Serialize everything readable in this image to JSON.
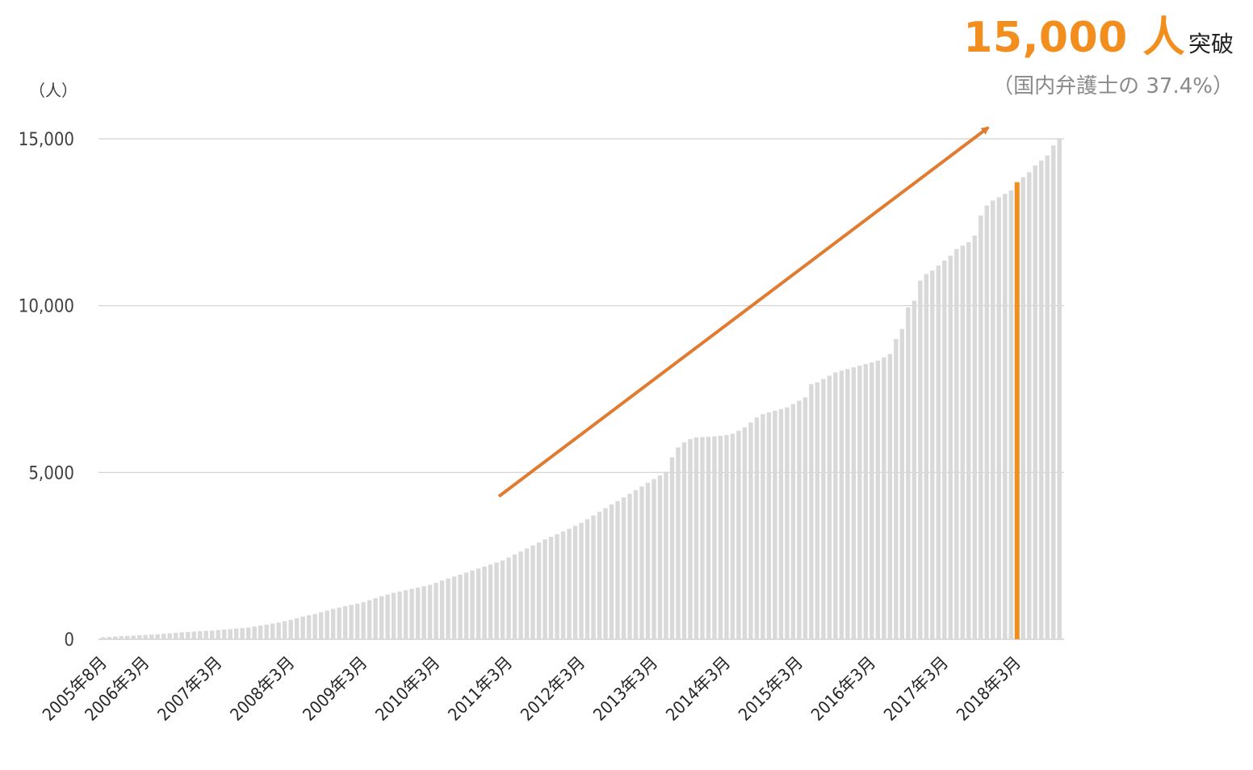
{
  "headline": {
    "count": "15,000 人",
    "suffix": "突破"
  },
  "subtext": "（国内弁護士の 37.4%）",
  "unit_label": "（人）",
  "colors": {
    "bar": "#d9d9d9",
    "highlight": "#f28e1e",
    "arrow": "#e07b30",
    "grid": "#d0d0d0",
    "headline": "#f28e1e"
  },
  "chart_data": {
    "type": "bar",
    "title": "",
    "xlabel": "",
    "ylabel": "（人）",
    "ylim": [
      0,
      15000
    ],
    "yticks": [
      "0",
      "5,000",
      "10,000",
      "15,000"
    ],
    "xtick_labels": [
      "2005年8月",
      "2006年3月",
      "2007年3月",
      "2008年3月",
      "2009年3月",
      "2010年3月",
      "2011年3月",
      "2012年3月",
      "2013年3月",
      "2014年3月",
      "2015年3月",
      "2016年3月",
      "2017年3月",
      "2018年3月"
    ],
    "xtick_index": [
      0,
      7,
      19,
      31,
      43,
      55,
      67,
      79,
      91,
      103,
      115,
      127,
      139,
      151
    ],
    "highlight_index": 151,
    "annotation": "upward trend arrow",
    "values": [
      60,
      70,
      80,
      90,
      100,
      110,
      120,
      130,
      140,
      150,
      165,
      180,
      195,
      210,
      220,
      230,
      240,
      250,
      260,
      275,
      290,
      305,
      320,
      335,
      350,
      380,
      410,
      440,
      470,
      500,
      540,
      580,
      630,
      680,
      720,
      760,
      810,
      860,
      910,
      950,
      990,
      1030,
      1070,
      1110,
      1170,
      1230,
      1290,
      1340,
      1390,
      1430,
      1470,
      1510,
      1550,
      1590,
      1630,
      1690,
      1760,
      1820,
      1880,
      1940,
      2000,
      2060,
      2120,
      2180,
      2240,
      2300,
      2360,
      2450,
      2540,
      2630,
      2720,
      2810,
      2900,
      2990,
      3070,
      3150,
      3230,
      3310,
      3400,
      3490,
      3600,
      3710,
      3820,
      3930,
      4040,
      4140,
      4250,
      4360,
      4470,
      4580,
      4690,
      4800,
      4910,
      5020,
      5450,
      5750,
      5900,
      6000,
      6050,
      6060,
      6070,
      6080,
      6100,
      6120,
      6160,
      6250,
      6350,
      6500,
      6650,
      6750,
      6800,
      6850,
      6900,
      6950,
      7050,
      7150,
      7250,
      7650,
      7700,
      7800,
      7900,
      8000,
      8050,
      8100,
      8150,
      8200,
      8250,
      8300,
      8350,
      8450,
      8550,
      9000,
      9300,
      9950,
      10150,
      10750,
      10950,
      11050,
      11200,
      11350,
      11500,
      11700,
      11800,
      11900,
      12100,
      12700,
      13000,
      13150,
      13250,
      13350,
      13450,
      13700,
      13850,
      14000,
      14200,
      14350,
      14500,
      14800,
      15000
    ]
  }
}
